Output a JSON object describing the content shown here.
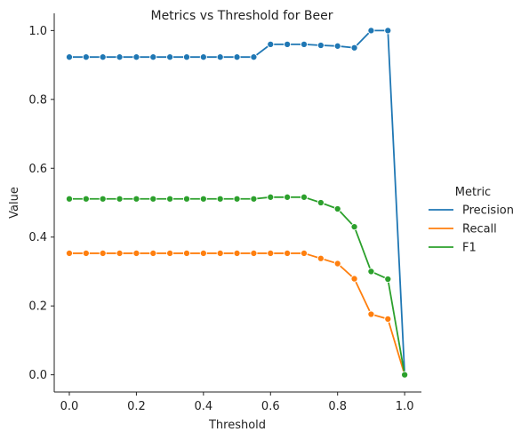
{
  "chart_data": {
    "type": "line",
    "title": "Metrics vs Threshold for Beer",
    "xlabel": "Threshold",
    "ylabel": "Value",
    "xlim": [
      -0.045,
      1.05
    ],
    "ylim": [
      -0.05,
      1.05
    ],
    "xticks": [
      0.0,
      0.2,
      0.4,
      0.6,
      0.8,
      1.0
    ],
    "xtick_labels": [
      "0.0",
      "0.2",
      "0.4",
      "0.6",
      "0.8",
      "1.0"
    ],
    "yticks": [
      0.0,
      0.2,
      0.4,
      0.6,
      0.8,
      1.0
    ],
    "ytick_labels": [
      "0.0",
      "0.2",
      "0.4",
      "0.6",
      "0.8",
      "1.0"
    ],
    "legend": {
      "title": "Metric",
      "placement": "right-outside"
    },
    "grid": false,
    "x": [
      0.0,
      0.05,
      0.1,
      0.15,
      0.2,
      0.25,
      0.3,
      0.35,
      0.4,
      0.45,
      0.5,
      0.55,
      0.6,
      0.65,
      0.7,
      0.75,
      0.8,
      0.85,
      0.9,
      0.95,
      1.0
    ],
    "series": [
      {
        "name": "Precision",
        "color": "#1f77b4",
        "values": [
          0.923,
          0.923,
          0.923,
          0.923,
          0.923,
          0.923,
          0.923,
          0.923,
          0.923,
          0.923,
          0.923,
          0.923,
          0.96,
          0.96,
          0.96,
          0.957,
          0.955,
          0.95,
          1.0,
          1.0,
          0.0
        ]
      },
      {
        "name": "Recall",
        "color": "#ff7f0e",
        "values": [
          0.353,
          0.353,
          0.353,
          0.353,
          0.353,
          0.353,
          0.353,
          0.353,
          0.353,
          0.353,
          0.353,
          0.353,
          0.353,
          0.353,
          0.353,
          0.338,
          0.323,
          0.279,
          0.176,
          0.162,
          0.0
        ]
      },
      {
        "name": "F1",
        "color": "#2ca02c",
        "values": [
          0.511,
          0.511,
          0.511,
          0.511,
          0.511,
          0.511,
          0.511,
          0.511,
          0.511,
          0.511,
          0.511,
          0.511,
          0.516,
          0.516,
          0.516,
          0.5,
          0.482,
          0.43,
          0.3,
          0.278,
          0.0
        ]
      }
    ]
  }
}
